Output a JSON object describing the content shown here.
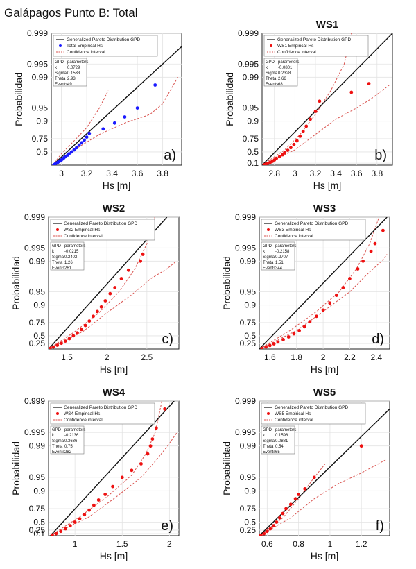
{
  "chart_data": [
    {
      "type": "scatter",
      "title": "Galápagos Punto B: Total",
      "panel_label": "a)",
      "xlabel": "Hs [m]",
      "ylabel": "Probabilidad",
      "xlim": [
        2.92,
        3.95
      ],
      "xticks": [
        3,
        3.2,
        3.4,
        3.6,
        3.8
      ],
      "yticks": [
        0.5,
        0.75,
        0.9,
        0.95,
        0.99,
        0.995,
        0.999
      ],
      "ytick_labels": [
        "0.5",
        "0.75",
        "0.9",
        "0.95",
        "0.99",
        "0.995",
        "0.999"
      ],
      "y_scale": "gpd-probability",
      "grid": true,
      "legend_position": "top-left",
      "legend": [
        "Generalized Pareto Distribution GPD",
        "Total Empirical Hs",
        "Confidence interval"
      ],
      "marker_color": "#1a1aff",
      "fit_color": "#111111",
      "ci_color": "#d9534f",
      "params": {
        "header": [
          "GPD",
          "parameters"
        ],
        "k": "0.0729",
        "Sigma": "0.1533",
        "Theta": "2.93",
        "Events": "49"
      },
      "fit_line": [
        [
          2.93,
          0.0
        ],
        [
          3.95,
          0.998
        ]
      ],
      "ci_upper": [
        [
          2.93,
          0.0
        ],
        [
          3.0,
          0.45
        ],
        [
          3.1,
          0.72
        ],
        [
          3.2,
          0.86
        ],
        [
          3.3,
          0.95
        ],
        [
          3.37,
          0.98
        ]
      ],
      "ci_lower": [
        [
          2.93,
          0.0
        ],
        [
          3.1,
          0.55
        ],
        [
          3.3,
          0.8
        ],
        [
          3.5,
          0.89
        ],
        [
          3.7,
          0.93
        ],
        [
          3.8,
          0.96
        ],
        [
          3.92,
          0.99
        ]
      ],
      "points": [
        [
          2.94,
          0.02
        ],
        [
          2.95,
          0.06
        ],
        [
          2.96,
          0.1
        ],
        [
          2.97,
          0.13
        ],
        [
          2.98,
          0.17
        ],
        [
          2.99,
          0.2
        ],
        [
          3.0,
          0.24
        ],
        [
          3.01,
          0.28
        ],
        [
          3.02,
          0.32
        ],
        [
          3.03,
          0.36
        ],
        [
          3.05,
          0.41
        ],
        [
          3.06,
          0.45
        ],
        [
          3.08,
          0.5
        ],
        [
          3.1,
          0.55
        ],
        [
          3.12,
          0.6
        ],
        [
          3.14,
          0.65
        ],
        [
          3.16,
          0.69
        ],
        [
          3.18,
          0.73
        ],
        [
          3.2,
          0.77
        ],
        [
          3.22,
          0.81
        ],
        [
          3.33,
          0.85
        ],
        [
          3.42,
          0.89
        ],
        [
          3.5,
          0.92
        ],
        [
          3.6,
          0.95
        ],
        [
          3.74,
          0.985
        ]
      ]
    },
    {
      "type": "scatter",
      "title": "WS1",
      "panel_label": "b)",
      "xlabel": "Hs [m]",
      "ylabel": "Probabilidad",
      "xlim": [
        2.68,
        3.95
      ],
      "xticks": [
        2.8,
        3,
        3.2,
        3.4,
        3.6,
        3.8
      ],
      "yticks": [
        0.1,
        0.5,
        0.75,
        0.9,
        0.95,
        0.99,
        0.995,
        0.999
      ],
      "ytick_labels": [
        "0.1",
        "0.5",
        "0.75",
        "0.9",
        "0.95",
        "0.99",
        "0.995",
        "0.999"
      ],
      "y_scale": "gpd-probability",
      "grid": true,
      "legend_position": "top-left",
      "legend": [
        "Generalized Pareto Distribution GPD",
        "WS1 Empirical Hs",
        "Confidence interval"
      ],
      "marker_color": "#ee1111",
      "fit_color": "#111111",
      "ci_color": "#d9534f",
      "params": {
        "header": [
          "GPD",
          "parameters"
        ],
        "k": "-0.0801",
        "Sigma": "0.2328",
        "Theta": "2.66",
        "Events": "68"
      },
      "fit_line": [
        [
          2.68,
          0.0
        ],
        [
          3.95,
          0.999
        ]
      ],
      "ci_upper": [
        [
          2.68,
          0.0
        ],
        [
          2.9,
          0.55
        ],
        [
          3.05,
          0.8
        ],
        [
          3.2,
          0.93
        ],
        [
          3.35,
          0.98
        ],
        [
          3.48,
          0.995
        ],
        [
          3.55,
          0.999
        ]
      ],
      "ci_lower": [
        [
          2.68,
          0.0
        ],
        [
          3.0,
          0.55
        ],
        [
          3.2,
          0.8
        ],
        [
          3.4,
          0.91
        ],
        [
          3.6,
          0.95
        ],
        [
          3.75,
          0.97
        ],
        [
          3.92,
          0.985
        ]
      ],
      "points": [
        [
          2.7,
          0.02
        ],
        [
          2.72,
          0.06
        ],
        [
          2.74,
          0.1
        ],
        [
          2.76,
          0.14
        ],
        [
          2.78,
          0.18
        ],
        [
          2.8,
          0.24
        ],
        [
          2.82,
          0.3
        ],
        [
          2.85,
          0.36
        ],
        [
          2.88,
          0.42
        ],
        [
          2.9,
          0.48
        ],
        [
          2.93,
          0.54
        ],
        [
          2.96,
          0.6
        ],
        [
          2.99,
          0.66
        ],
        [
          3.02,
          0.72
        ],
        [
          3.05,
          0.78
        ],
        [
          3.08,
          0.83
        ],
        [
          3.11,
          0.87
        ],
        [
          3.15,
          0.91
        ],
        [
          3.2,
          0.94
        ],
        [
          3.24,
          0.965
        ],
        [
          3.55,
          0.978
        ],
        [
          3.72,
          0.986
        ]
      ]
    },
    {
      "type": "scatter",
      "title": "WS2",
      "panel_label": "c)",
      "xlabel": "Hs [m]",
      "ylabel": "Probabilidad",
      "xlim": [
        1.27,
        2.9
      ],
      "xticks": [
        1.5,
        2,
        2.5
      ],
      "yticks": [
        0.25,
        0.5,
        0.75,
        0.9,
        0.95,
        0.99,
        0.995,
        0.999
      ],
      "ytick_labels": [
        "0.25",
        "0.5",
        "0.75",
        "0.9",
        "0.95",
        "0.99",
        "0.995",
        "0.999"
      ],
      "y_scale": "gpd-probability",
      "grid": true,
      "legend_position": "top-left",
      "legend": [
        "Generalized Pareto Distribution GPD",
        "WS2 Empirical Hs",
        "Confidence interval"
      ],
      "marker_color": "#ee1111",
      "fit_color": "#111111",
      "ci_color": "#d9534f",
      "params": {
        "header": [
          "GPD",
          "parameters"
        ],
        "k": "-0.0215",
        "Sigma": "0.2402",
        "Theta": "1.26",
        "Events": "261"
      },
      "fit_line": [
        [
          1.27,
          0.0
        ],
        [
          2.75,
          0.999
        ]
      ],
      "ci_upper": [
        [
          1.27,
          0.0
        ],
        [
          1.6,
          0.6
        ],
        [
          1.9,
          0.85
        ],
        [
          2.15,
          0.95
        ],
        [
          2.35,
          0.985
        ],
        [
          2.5,
          0.996
        ],
        [
          2.6,
          0.999
        ]
      ],
      "ci_lower": [
        [
          1.27,
          0.0
        ],
        [
          1.7,
          0.6
        ],
        [
          2.0,
          0.85
        ],
        [
          2.3,
          0.94
        ],
        [
          2.55,
          0.975
        ],
        [
          2.75,
          0.985
        ],
        [
          2.87,
          0.99
        ]
      ],
      "points": [
        [
          1.29,
          0.03
        ],
        [
          1.33,
          0.1
        ],
        [
          1.38,
          0.18
        ],
        [
          1.43,
          0.26
        ],
        [
          1.48,
          0.34
        ],
        [
          1.53,
          0.42
        ],
        [
          1.58,
          0.5
        ],
        [
          1.63,
          0.57
        ],
        [
          1.68,
          0.64
        ],
        [
          1.73,
          0.71
        ],
        [
          1.78,
          0.77
        ],
        [
          1.83,
          0.82
        ],
        [
          1.88,
          0.86
        ],
        [
          1.93,
          0.89
        ],
        [
          1.98,
          0.92
        ],
        [
          2.04,
          0.945
        ],
        [
          2.1,
          0.96
        ],
        [
          2.18,
          0.975
        ],
        [
          2.27,
          0.984
        ],
        [
          2.42,
          0.99
        ],
        [
          2.45,
          0.993
        ],
        [
          2.58,
          0.998
        ]
      ]
    },
    {
      "type": "scatter",
      "title": "WS3",
      "panel_label": "d)",
      "xlabel": "Hs [m]",
      "ylabel": "Probabilidad",
      "xlim": [
        1.52,
        2.5
      ],
      "xticks": [
        1.6,
        1.8,
        2,
        2.2,
        2.4
      ],
      "yticks": [
        0.25,
        0.5,
        0.75,
        0.9,
        0.95,
        0.99,
        0.995,
        0.999
      ],
      "ytick_labels": [
        "0.25",
        "0.5",
        "0.75",
        "0.9",
        "0.95",
        "0.99",
        "0.995",
        "0.999"
      ],
      "y_scale": "gpd-probability",
      "grid": true,
      "legend_position": "top-left",
      "legend": [
        "Generalized Pareto Distribution GPD",
        "WS3 Empirical Hs",
        "Confidence interval"
      ],
      "marker_color": "#ee1111",
      "fit_color": "#111111",
      "ci_color": "#d9534f",
      "params": {
        "header": [
          "GPD",
          "parameters"
        ],
        "k": "-0.2158",
        "Sigma": "0.2707",
        "Theta": "1.51",
        "Events": "344"
      },
      "fit_line": [
        [
          1.52,
          0.0
        ],
        [
          2.48,
          0.999
        ]
      ],
      "ci_upper": [
        [
          1.52,
          0.0
        ],
        [
          1.75,
          0.62
        ],
        [
          1.95,
          0.86
        ],
        [
          2.12,
          0.95
        ],
        [
          2.25,
          0.985
        ],
        [
          2.35,
          0.996
        ],
        [
          2.42,
          0.999
        ]
      ],
      "ci_lower": [
        [
          1.52,
          0.0
        ],
        [
          1.8,
          0.62
        ],
        [
          2.0,
          0.86
        ],
        [
          2.2,
          0.95
        ],
        [
          2.33,
          0.98
        ],
        [
          2.44,
          0.99
        ],
        [
          2.48,
          0.993
        ]
      ],
      "points": [
        [
          1.54,
          0.03
        ],
        [
          1.57,
          0.1
        ],
        [
          1.6,
          0.17
        ],
        [
          1.63,
          0.24
        ],
        [
          1.66,
          0.31
        ],
        [
          1.7,
          0.39
        ],
        [
          1.74,
          0.47
        ],
        [
          1.78,
          0.55
        ],
        [
          1.82,
          0.62
        ],
        [
          1.86,
          0.69
        ],
        [
          1.9,
          0.76
        ],
        [
          1.95,
          0.82
        ],
        [
          2.0,
          0.87
        ],
        [
          2.05,
          0.91
        ],
        [
          2.1,
          0.94
        ],
        [
          2.15,
          0.96
        ],
        [
          2.2,
          0.975
        ],
        [
          2.26,
          0.985
        ],
        [
          2.3,
          0.99
        ],
        [
          2.36,
          0.994
        ],
        [
          2.39,
          0.996
        ],
        [
          2.45,
          0.998
        ]
      ]
    },
    {
      "type": "scatter",
      "title": "WS4",
      "panel_label": "e)",
      "xlabel": "Hs [m]",
      "ylabel": "Probabilidad",
      "xlim": [
        0.72,
        2.1
      ],
      "xticks": [
        1,
        1.5,
        2
      ],
      "yticks": [
        0.1,
        0.25,
        0.5,
        0.75,
        0.9,
        0.95,
        0.99,
        0.995,
        0.999
      ],
      "ytick_labels": [
        "0.1",
        "0.25",
        "0.5",
        "0.75",
        "0.9",
        "0.95",
        "0.99",
        "0.995",
        "0.999"
      ],
      "y_scale": "gpd-probability",
      "grid": true,
      "legend_position": "top-left",
      "legend": [
        "Generalized Pareto Distribution GPD",
        "WS4 Empirical Hs",
        "Confidence interval"
      ],
      "marker_color": "#ee1111",
      "fit_color": "#111111",
      "ci_color": "#d9534f",
      "params": {
        "header": [
          "GPD",
          "parameters"
        ],
        "k": "-0.2136",
        "Sigma": "0.3636",
        "Theta": "0.75",
        "Events": "282"
      },
      "fit_line": [
        [
          0.74,
          0.0
        ],
        [
          2.05,
          0.999
        ]
      ],
      "ci_upper": [
        [
          0.74,
          0.0
        ],
        [
          1.05,
          0.62
        ],
        [
          1.35,
          0.87
        ],
        [
          1.6,
          0.955
        ],
        [
          1.75,
          0.985
        ],
        [
          1.85,
          0.995
        ],
        [
          1.92,
          0.999
        ]
      ],
      "ci_lower": [
        [
          0.74,
          0.0
        ],
        [
          1.15,
          0.62
        ],
        [
          1.45,
          0.87
        ],
        [
          1.7,
          0.95
        ],
        [
          1.85,
          0.978
        ],
        [
          1.98,
          0.99
        ],
        [
          2.08,
          0.995
        ]
      ],
      "points": [
        [
          0.76,
          0.03
        ],
        [
          0.8,
          0.1
        ],
        [
          0.85,
          0.2
        ],
        [
          0.9,
          0.3
        ],
        [
          0.95,
          0.4
        ],
        [
          1.0,
          0.5
        ],
        [
          1.05,
          0.58
        ],
        [
          1.1,
          0.66
        ],
        [
          1.15,
          0.73
        ],
        [
          1.2,
          0.79
        ],
        [
          1.25,
          0.84
        ],
        [
          1.32,
          0.88
        ],
        [
          1.4,
          0.92
        ],
        [
          1.5,
          0.95
        ],
        [
          1.6,
          0.965
        ],
        [
          1.7,
          0.975
        ],
        [
          1.77,
          0.985
        ],
        [
          1.8,
          0.99
        ],
        [
          1.82,
          0.993
        ],
        [
          1.86,
          0.996
        ],
        [
          1.95,
          0.9985
        ]
      ]
    },
    {
      "type": "scatter",
      "title": "WS5",
      "panel_label": "f)",
      "xlabel": "Hs [m]",
      "ylabel": "Probabilidad",
      "xlim": [
        0.55,
        1.38
      ],
      "xticks": [
        0.6,
        0.8,
        1,
        1.2
      ],
      "yticks": [
        0.25,
        0.5,
        0.75,
        0.9,
        0.95,
        0.99,
        0.995,
        0.999
      ],
      "ytick_labels": [
        "0.25",
        "0.5",
        "0.75",
        "0.9",
        "0.95",
        "0.99",
        "0.995",
        "0.999"
      ],
      "y_scale": "gpd-probability",
      "grid": true,
      "legend_position": "top-left",
      "legend": [
        "Generalized Pareto Distribution GPD",
        "WS5 Empirical Hs",
        "Confidence interval"
      ],
      "marker_color": "#ee1111",
      "fit_color": "#111111",
      "ci_color": "#d9534f",
      "params": {
        "header": [
          "GPD",
          "parameters"
        ],
        "k": "0.1598",
        "Sigma": "0.0881",
        "Theta": "0.54",
        "Events": "65"
      },
      "fit_line": [
        [
          0.55,
          0.0
        ],
        [
          1.38,
          0.9985
        ]
      ],
      "ci_upper": [
        [
          0.55,
          0.0
        ],
        [
          0.7,
          0.6
        ],
        [
          0.8,
          0.85
        ],
        [
          0.9,
          0.95
        ],
        [
          0.97,
          0.975
        ]
      ],
      "ci_lower": [
        [
          0.55,
          0.0
        ],
        [
          0.75,
          0.6
        ],
        [
          0.9,
          0.85
        ],
        [
          1.05,
          0.93
        ],
        [
          1.2,
          0.96
        ],
        [
          1.36,
          0.98
        ]
      ],
      "points": [
        [
          0.56,
          0.03
        ],
        [
          0.58,
          0.1
        ],
        [
          0.6,
          0.2
        ],
        [
          0.62,
          0.3
        ],
        [
          0.64,
          0.4
        ],
        [
          0.66,
          0.5
        ],
        [
          0.68,
          0.6
        ],
        [
          0.7,
          0.68
        ],
        [
          0.72,
          0.75
        ],
        [
          0.75,
          0.8
        ],
        [
          0.78,
          0.85
        ],
        [
          0.8,
          0.88
        ],
        [
          0.84,
          0.91
        ],
        [
          0.9,
          0.95
        ],
        [
          1.2,
          0.99
        ]
      ]
    }
  ]
}
